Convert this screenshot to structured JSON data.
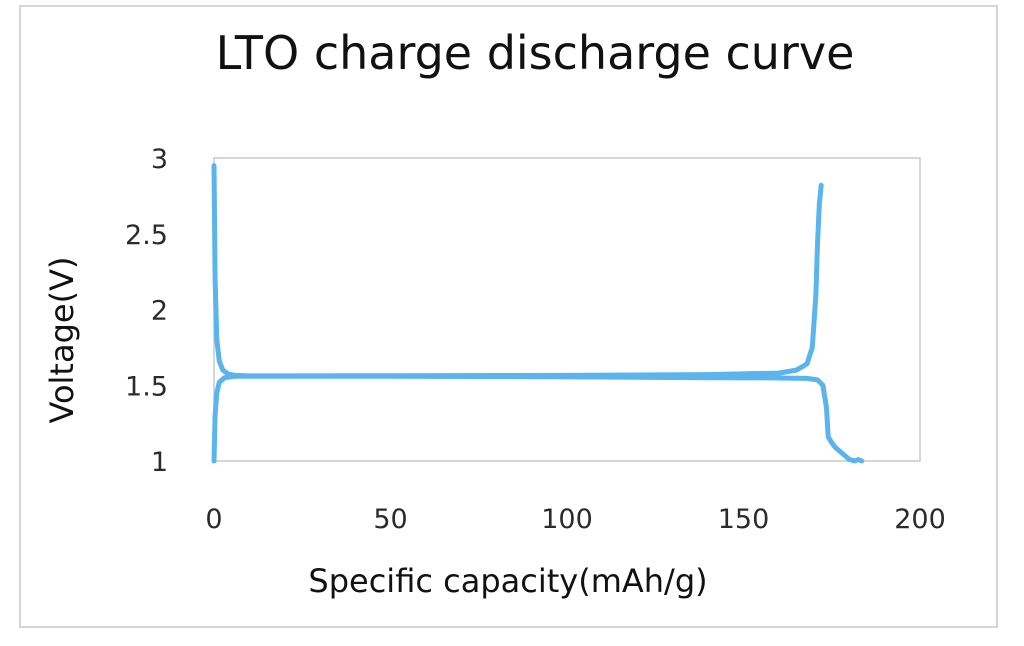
{
  "colors": {
    "curve": "#5bb4ec",
    "plot_border": "#c8c8c8",
    "frame_border": "#d6d6d6"
  },
  "chart_data": {
    "type": "line",
    "title": "LTO charge discharge curve",
    "xlabel": "Specific capacity(mAh/g)",
    "ylabel": "Voltage(V)",
    "xlim": [
      0,
      200
    ],
    "ylim": [
      1,
      3
    ],
    "xticks": [
      "0",
      "50",
      "100",
      "150",
      "200"
    ],
    "yticks": [
      "1",
      "1.5",
      "2",
      "2.5",
      "3"
    ],
    "grid": false,
    "series": [
      {
        "x": [
          0,
          0.3,
          0.8,
          1.5,
          2.5,
          4,
          6,
          10,
          50,
          100,
          140,
          160,
          165,
          168,
          169.5,
          170.5,
          171,
          171.5,
          172
        ],
        "y": [
          2.95,
          2.2,
          1.8,
          1.66,
          1.6,
          1.575,
          1.565,
          1.562,
          1.563,
          1.565,
          1.57,
          1.58,
          1.6,
          1.64,
          1.75,
          2.1,
          2.45,
          2.7,
          2.82
        ]
      },
      {
        "x": [
          0,
          0.3,
          0.8,
          1.5,
          3,
          6,
          10,
          50,
          100,
          140,
          160,
          168,
          171,
          172.5,
          173.5,
          174,
          175,
          176,
          178,
          180,
          181.5,
          182.5,
          183.5
        ],
        "y": [
          1.0,
          1.3,
          1.45,
          1.52,
          1.55,
          1.56,
          1.56,
          1.56,
          1.555,
          1.55,
          1.548,
          1.545,
          1.535,
          1.5,
          1.35,
          1.16,
          1.12,
          1.09,
          1.05,
          1.01,
          1.0,
          1.01,
          1.0
        ]
      }
    ]
  }
}
